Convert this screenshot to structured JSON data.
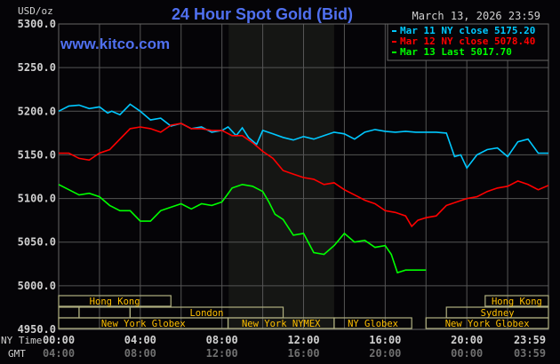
{
  "chart_data": {
    "type": "line",
    "title": "24 Hour Spot Gold (Bid)",
    "watermark": "www.kitco.com",
    "timestamp": "March 13, 2026 23:59",
    "ylabel": "USD/oz",
    "ylim": [
      4950,
      5300
    ],
    "yticks": [
      "5300.0",
      "5250.0",
      "5200.0",
      "5150.0",
      "5100.0",
      "5050.0",
      "5000.0",
      "4950.0"
    ],
    "xlim_hours": [
      0,
      24
    ],
    "x_row_label": "NY Time",
    "x_row2_label": "GMT",
    "xticks_ny": [
      "00:00",
      "04:00",
      "08:00",
      "12:00",
      "16:00",
      "20:00",
      "23:59"
    ],
    "xticks_gmt": [
      "04:00",
      "08:00",
      "12:00",
      "16:00",
      "20:00",
      "00:00",
      "03:59"
    ],
    "grid": true,
    "legend_placement": "top-right",
    "highlight_hours": [
      8.33,
      13.5
    ],
    "series": [
      {
        "name": "Mar 11 NY close 5175.20",
        "color": "#00c8ff",
        "x": [
          0,
          0.5,
          1,
          1.5,
          2,
          2.4,
          2.6,
          3,
          3.5,
          4,
          4.5,
          5,
          5.5,
          6,
          6.5,
          7,
          7.5,
          8,
          8.3,
          8.7,
          9,
          9.3,
          9.7,
          10,
          10.5,
          11,
          11.5,
          12,
          12.5,
          13,
          13.5,
          14,
          14.5,
          15,
          15.5,
          16,
          16.5,
          17,
          17.5,
          18,
          18.5,
          19,
          19.4,
          19.7,
          20,
          20.5,
          21,
          21.5,
          22,
          22.5,
          23,
          23.5,
          24
        ],
        "y": [
          5200,
          5206,
          5207,
          5203,
          5205,
          5198,
          5200,
          5196,
          5208,
          5200,
          5190,
          5192,
          5183,
          5186,
          5180,
          5182,
          5176,
          5178,
          5182,
          5172,
          5181,
          5170,
          5162,
          5178,
          5174,
          5170,
          5167,
          5171,
          5168,
          5172,
          5176,
          5174,
          5168,
          5176,
          5179,
          5177,
          5176,
          5177,
          5176,
          5176,
          5176,
          5175,
          5148,
          5150,
          5135,
          5150,
          5156,
          5158,
          5148,
          5165,
          5168,
          5152,
          5152
        ]
      },
      {
        "name": "Mar 12 NY close 5078.40",
        "color": "#ff0000",
        "x": [
          0,
          0.5,
          1,
          1.5,
          2,
          2.5,
          3,
          3.5,
          4,
          4.5,
          5,
          5.5,
          6,
          6.5,
          7,
          7.5,
          8,
          8.5,
          9,
          9.5,
          10,
          10.5,
          11,
          11.5,
          12,
          12.5,
          13,
          13.5,
          14,
          14.5,
          15,
          15.5,
          16,
          16.5,
          17,
          17.3,
          17.6,
          18,
          18.5,
          19,
          19.5,
          20,
          20.5,
          21,
          21.5,
          22,
          22.5,
          23,
          23.5,
          24
        ],
        "y": [
          5152,
          5152,
          5146,
          5144,
          5152,
          5156,
          5168,
          5180,
          5182,
          5180,
          5176,
          5184,
          5186,
          5180,
          5180,
          5178,
          5178,
          5172,
          5172,
          5164,
          5154,
          5146,
          5132,
          5128,
          5124,
          5122,
          5116,
          5118,
          5110,
          5104,
          5098,
          5094,
          5086,
          5084,
          5080,
          5068,
          5075,
          5078,
          5080,
          5092,
          5096,
          5100,
          5102,
          5108,
          5112,
          5114,
          5120,
          5116,
          5110,
          5115
        ]
      },
      {
        "name": "Mar 13 Last 5017.70",
        "color": "#00ff00",
        "x": [
          0,
          0.5,
          1,
          1.5,
          2,
          2.5,
          3,
          3.5,
          4,
          4.5,
          5,
          5.5,
          6,
          6.5,
          7,
          7.5,
          8,
          8.5,
          9,
          9.5,
          10,
          10.3,
          10.6,
          11,
          11.5,
          12,
          12.5,
          13,
          13.5,
          14,
          14.5,
          15,
          15.5,
          16,
          16.3,
          16.6,
          17,
          17.5,
          18
        ],
        "y": [
          5116,
          5110,
          5104,
          5106,
          5102,
          5092,
          5086,
          5086,
          5074,
          5074,
          5086,
          5090,
          5094,
          5088,
          5094,
          5092,
          5096,
          5112,
          5116,
          5114,
          5108,
          5096,
          5082,
          5076,
          5058,
          5060,
          5038,
          5036,
          5046,
          5060,
          5050,
          5052,
          5044,
          5046,
          5036,
          5015,
          5018,
          5018,
          5018
        ]
      }
    ]
  },
  "sessions": {
    "row1": [
      {
        "label": "Hong Kong",
        "start": 0,
        "end": 5.5
      },
      {
        "label": "Hong Kong",
        "start": 20.9,
        "end": 24
      }
    ],
    "row2": [
      {
        "label": "",
        "start": 0,
        "end": 1
      },
      {
        "label": "",
        "start": 1,
        "end": 3.5
      },
      {
        "label": "London",
        "start": 3.5,
        "end": 11
      },
      {
        "label": "Sydney",
        "start": 19,
        "end": 24
      }
    ],
    "row3": [
      {
        "label": "New York Globex",
        "start": 0,
        "end": 8.3
      },
      {
        "label": "New York NYMEX",
        "start": 8.3,
        "end": 13.5
      },
      {
        "label": "NY Globex",
        "start": 13.5,
        "end": 17.3
      },
      {
        "label": "New York Globex",
        "start": 18,
        "end": 24
      }
    ]
  },
  "colors": {
    "title": "#5070f0",
    "session": "#ffc000",
    "session_border": "#b0b080",
    "grid": "#555555",
    "axis_text": "#d0d0d0",
    "gmt_text": "#707070"
  }
}
